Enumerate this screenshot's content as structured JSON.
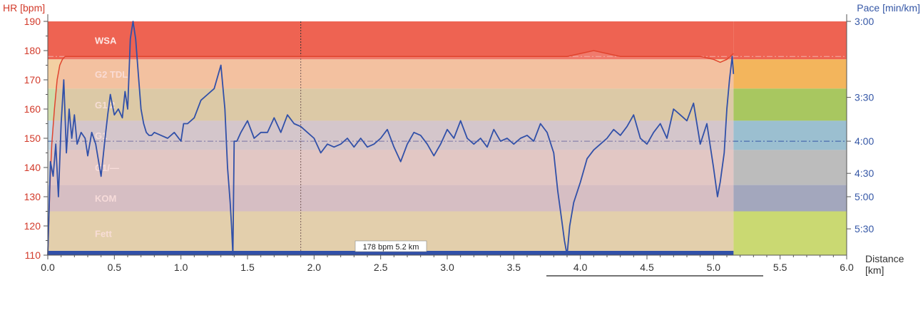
{
  "chart_data": {
    "type": "line",
    "left_axis_title": "HR [bpm]",
    "right_axis_title": "Pace [min/km]",
    "x_axis_title_line1": "Distance",
    "x_axis_title_line2": "[km]",
    "hr_ticks": [
      110,
      120,
      130,
      140,
      150,
      160,
      170,
      180,
      190
    ],
    "x_ticks": [
      "0.0",
      "0.5",
      "1.0",
      "1.5",
      "2.0",
      "2.5",
      "3.0",
      "3.5",
      "4.0",
      "4.5",
      "5.0",
      "5.5",
      "6.0"
    ],
    "pace_ticks": [
      {
        "label": "3:00",
        "hr": 190
      },
      {
        "label": "3:30",
        "hr": 164
      },
      {
        "label": "4:00",
        "hr": 149
      },
      {
        "label": "4:30",
        "hr": 138
      },
      {
        "label": "5:00",
        "hr": 130
      },
      {
        "label": "5:30",
        "hr": 119
      }
    ],
    "xlim": [
      0,
      6
    ],
    "ylim": [
      110,
      190
    ],
    "zones": [
      {
        "name": "WSA",
        "from": 177,
        "to": 190,
        "color": "#ee6352",
        "side_color": "#ee6352"
      },
      {
        "name": "G2 TDL",
        "from": 167,
        "to": 177,
        "color": "#f3d0a2",
        "side_color": "#f3b55c"
      },
      {
        "name": "G1/2",
        "from": 156,
        "to": 167,
        "color": "#cfdcab",
        "side_color": "#a8c760"
      },
      {
        "name": "G1",
        "from": 146,
        "to": 156,
        "color": "#c4d8e4",
        "side_color": "#9bbfd0"
      },
      {
        "name": "G1/—",
        "from": 134,
        "to": 146,
        "color": "#d9d9d9",
        "side_color": "#bcbcbc"
      },
      {
        "name": "KOM",
        "from": 125,
        "to": 134,
        "color": "#c7cbd8",
        "side_color": "#a3a7bd"
      },
      {
        "name": "Fett",
        "from": 110,
        "to": 125,
        "color": "#dbe5b4",
        "side_color": "#cad972"
      }
    ],
    "avg_hr": 178,
    "avg_pace_hr": 149,
    "cursor_x": 1.9,
    "cursor_label": "178 bpm 5.2 km",
    "track_end_x": 5.15,
    "hr_series": {
      "name": "",
      "x": [
        0,
        0.01,
        0.02,
        0.03,
        0.05,
        0.07,
        0.09,
        0.11,
        0.13,
        0.16,
        0.2,
        0.3,
        0.4,
        0.5,
        0.6,
        0.7,
        0.8,
        0.9,
        1.0,
        1.1,
        1.2,
        1.3,
        1.4,
        1.5,
        1.6,
        1.7,
        1.8,
        1.9,
        2.0,
        2.1,
        2.2,
        2.3,
        2.4,
        2.5,
        2.6,
        2.7,
        2.8,
        2.9,
        3.0,
        3.1,
        3.2,
        3.3,
        3.4,
        3.5,
        3.6,
        3.7,
        3.8,
        3.9,
        4.0,
        4.1,
        4.2,
        4.3,
        4.4,
        4.5,
        4.6,
        4.7,
        4.8,
        4.9,
        5.0,
        5.05,
        5.1,
        5.15
      ],
      "values": [
        110,
        125,
        138,
        148,
        160,
        170,
        175,
        177,
        178,
        178,
        178,
        178,
        178,
        178,
        178,
        178,
        178,
        178,
        178,
        178,
        178,
        178,
        178,
        178,
        178,
        178,
        178,
        178,
        178,
        178,
        178,
        178,
        178,
        178,
        178,
        178,
        178,
        178,
        178,
        178,
        178,
        178,
        178,
        178,
        178,
        178,
        178,
        178,
        179,
        180,
        179,
        178,
        178,
        178,
        178,
        178,
        178,
        178,
        177,
        176,
        177,
        179
      ]
    },
    "pace_series": {
      "name": "",
      "x": [
        0,
        0.02,
        0.04,
        0.06,
        0.08,
        0.1,
        0.12,
        0.14,
        0.16,
        0.18,
        0.2,
        0.22,
        0.25,
        0.28,
        0.3,
        0.33,
        0.36,
        0.4,
        0.43,
        0.45,
        0.47,
        0.5,
        0.53,
        0.56,
        0.58,
        0.6,
        0.62,
        0.64,
        0.66,
        0.68,
        0.7,
        0.72,
        0.74,
        0.76,
        0.78,
        0.8,
        0.85,
        0.9,
        0.95,
        1.0,
        1.02,
        1.05,
        1.1,
        1.15,
        1.2,
        1.25,
        1.3,
        1.33,
        1.35,
        1.37,
        1.38,
        1.39,
        1.4,
        1.42,
        1.45,
        1.5,
        1.55,
        1.6,
        1.65,
        1.7,
        1.75,
        1.8,
        1.85,
        1.9,
        1.95,
        2.0,
        2.05,
        2.1,
        2.15,
        2.2,
        2.25,
        2.3,
        2.35,
        2.4,
        2.45,
        2.5,
        2.55,
        2.6,
        2.65,
        2.7,
        2.75,
        2.8,
        2.85,
        2.9,
        2.95,
        3.0,
        3.05,
        3.1,
        3.15,
        3.2,
        3.25,
        3.3,
        3.35,
        3.4,
        3.45,
        3.5,
        3.55,
        3.6,
        3.65,
        3.7,
        3.75,
        3.8,
        3.83,
        3.86,
        3.88,
        3.9,
        3.92,
        3.95,
        4.0,
        4.05,
        4.1,
        4.15,
        4.2,
        4.25,
        4.3,
        4.35,
        4.4,
        4.45,
        4.5,
        4.55,
        4.6,
        4.65,
        4.7,
        4.75,
        4.8,
        4.85,
        4.9,
        4.95,
        5.0,
        5.03,
        5.05,
        5.08,
        5.1,
        5.12,
        5.14,
        5.15
      ],
      "values": [
        110,
        142,
        137,
        148,
        130,
        155,
        170,
        145,
        160,
        150,
        158,
        148,
        152,
        150,
        144,
        152,
        148,
        137,
        150,
        158,
        165,
        158,
        160,
        157,
        166,
        160,
        184,
        190,
        184,
        172,
        160,
        155,
        152,
        151,
        151,
        152,
        151,
        150,
        152,
        149,
        155,
        155,
        157,
        163,
        165,
        167,
        175,
        160,
        140,
        128,
        120,
        110,
        149,
        149,
        152,
        156,
        150,
        152,
        152,
        157,
        152,
        158,
        155,
        154,
        152,
        150,
        145,
        148,
        147,
        148,
        150,
        147,
        150,
        147,
        148,
        150,
        153,
        147,
        142,
        148,
        152,
        151,
        148,
        144,
        148,
        153,
        150,
        156,
        150,
        148,
        150,
        147,
        153,
        149,
        150,
        148,
        150,
        151,
        149,
        155,
        152,
        145,
        132,
        122,
        115,
        110,
        120,
        128,
        135,
        143,
        146,
        148,
        150,
        153,
        151,
        154,
        158,
        150,
        148,
        152,
        155,
        150,
        160,
        158,
        156,
        162,
        148,
        155,
        140,
        130,
        135,
        145,
        160,
        170,
        178,
        172
      ]
    }
  }
}
